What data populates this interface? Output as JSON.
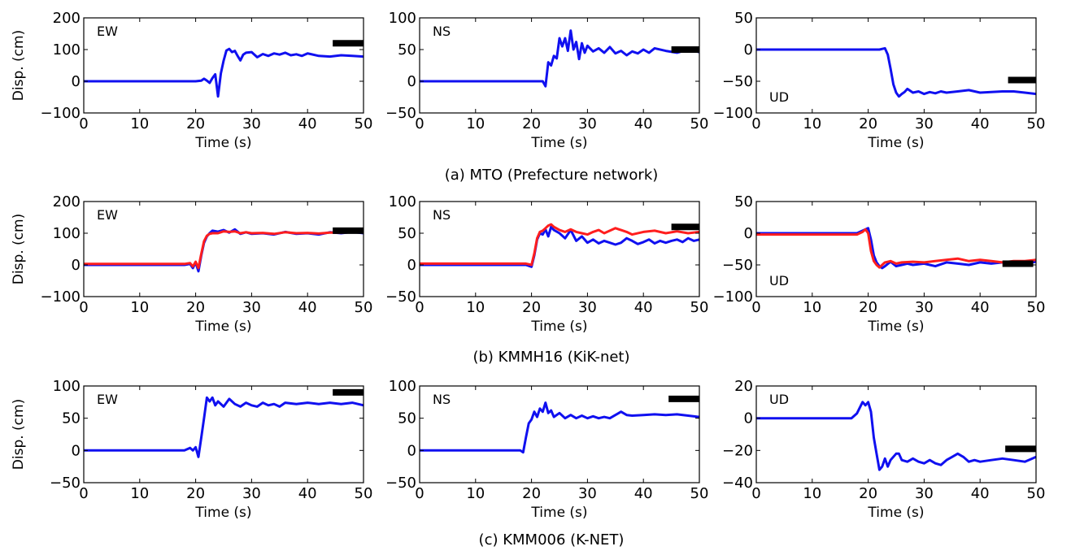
{
  "figure": {
    "captions": [
      "(a) MTO (Prefecture network)",
      "(b) KMMH16 (KiK-net)",
      "(c) KMM006 (K-NET)"
    ]
  },
  "colors": {
    "blue": "#1010f0",
    "red": "#ff1e1e",
    "bar": "#000000"
  },
  "chart_data": [
    {
      "id": "a-ew",
      "type": "line",
      "label": "EW",
      "xlabel": "Time (s)",
      "ylabel": "Disp. (cm)",
      "xlim": [
        0,
        50
      ],
      "ylim": [
        -100,
        200
      ],
      "xticks": [
        "0",
        "10",
        "20",
        "30",
        "40",
        "50"
      ],
      "yticks": [
        "−100",
        "0",
        "100",
        "200"
      ],
      "bar": {
        "x": [
          44.5,
          50
        ],
        "y": 120
      },
      "series": [
        {
          "color": "blue",
          "x": [
            0,
            19,
            20,
            21,
            21.5,
            22,
            22.5,
            23,
            23.5,
            24,
            24.5,
            25,
            25.5,
            26,
            26.5,
            27,
            27.5,
            28,
            28.5,
            29,
            30,
            31,
            32,
            33,
            34,
            35,
            36,
            37,
            38,
            39,
            40,
            42,
            44,
            46,
            48,
            50
          ],
          "y": [
            0,
            0,
            0,
            2,
            8,
            2,
            -5,
            10,
            22,
            -48,
            25,
            65,
            97,
            102,
            92,
            96,
            80,
            66,
            84,
            90,
            92,
            76,
            86,
            80,
            88,
            84,
            90,
            82,
            85,
            80,
            88,
            80,
            78,
            82,
            80,
            78
          ]
        }
      ]
    },
    {
      "id": "a-ns",
      "type": "line",
      "label": "NS",
      "xlabel": "Time (s)",
      "ylabel": "",
      "xlim": [
        0,
        50
      ],
      "ylim": [
        -50,
        100
      ],
      "xticks": [
        "0",
        "10",
        "20",
        "30",
        "40",
        "50"
      ],
      "yticks": [
        "−50",
        "0",
        "50",
        "100"
      ],
      "bar": {
        "x": [
          45,
          50
        ],
        "y": 50
      },
      "series": [
        {
          "color": "blue",
          "x": [
            0,
            21,
            22,
            22.5,
            23,
            23.5,
            24,
            24.5,
            25,
            25.5,
            26,
            26.5,
            27,
            27.5,
            28,
            28.5,
            29,
            29.5,
            30,
            31,
            32,
            33,
            34,
            35,
            36,
            37,
            38,
            39,
            40,
            41,
            42,
            44,
            46,
            48,
            50
          ],
          "y": [
            0,
            0,
            0,
            -8,
            30,
            25,
            40,
            36,
            68,
            55,
            68,
            48,
            80,
            50,
            62,
            35,
            60,
            45,
            56,
            47,
            52,
            45,
            54,
            44,
            48,
            41,
            47,
            44,
            50,
            45,
            52,
            48,
            45,
            50,
            46
          ]
        }
      ]
    },
    {
      "id": "a-ud",
      "type": "line",
      "label": "UD",
      "xlabel": "Time (s)",
      "ylabel": "",
      "xlim": [
        0,
        50
      ],
      "ylim": [
        -100,
        50
      ],
      "xticks": [
        "0",
        "10",
        "20",
        "30",
        "40",
        "50"
      ],
      "yticks": [
        "−100",
        "−50",
        "0",
        "50"
      ],
      "bar": {
        "x": [
          45,
          50
        ],
        "y": -48
      },
      "series": [
        {
          "color": "blue",
          "x": [
            0,
            20,
            21,
            22,
            23,
            23.5,
            24,
            24.5,
            25,
            25.5,
            26,
            26.5,
            27,
            28,
            29,
            30,
            31,
            32,
            33,
            34,
            36,
            38,
            40,
            42,
            44,
            46,
            48,
            50
          ],
          "y": [
            0,
            0,
            0,
            0,
            2,
            -8,
            -30,
            -55,
            -68,
            -74,
            -70,
            -67,
            -62,
            -68,
            -66,
            -70,
            -67,
            -69,
            -66,
            -68,
            -66,
            -64,
            -68,
            -67,
            -66,
            -66,
            -68,
            -70
          ]
        }
      ]
    },
    {
      "id": "b-ew",
      "type": "line",
      "label": "EW",
      "xlabel": "Time (s)",
      "ylabel": "Disp. (cm)",
      "xlim": [
        0,
        50
      ],
      "ylim": [
        -100,
        200
      ],
      "xticks": [
        "0",
        "10",
        "20",
        "30",
        "40",
        "50"
      ],
      "yticks": [
        "−100",
        "0",
        "100",
        "200"
      ],
      "bar": {
        "x": [
          44.5,
          50
        ],
        "y": 108
      },
      "series": [
        {
          "color": "blue",
          "x": [
            0,
            18,
            19,
            19.5,
            20,
            20.5,
            21,
            21.5,
            22,
            22.5,
            23,
            24,
            25,
            26,
            27,
            28,
            29,
            30,
            32,
            34,
            36,
            38,
            40,
            42,
            44,
            46,
            48,
            50
          ],
          "y": [
            0,
            0,
            3,
            -10,
            8,
            -20,
            30,
            70,
            90,
            100,
            108,
            105,
            110,
            102,
            112,
            98,
            103,
            98,
            100,
            96,
            104,
            98,
            100,
            96,
            103,
            100,
            104,
            100
          ]
        },
        {
          "color": "red",
          "x": [
            0,
            18,
            19,
            19.5,
            20,
            20.5,
            21,
            21.5,
            22,
            22.5,
            23,
            24,
            25,
            26,
            27,
            28,
            29,
            30,
            32,
            34,
            36,
            38,
            40,
            42,
            44,
            46,
            48,
            50
          ],
          "y": [
            3,
            3,
            6,
            -5,
            10,
            -10,
            35,
            75,
            92,
            98,
            100,
            100,
            106,
            104,
            106,
            100,
            103,
            100,
            101,
            98,
            103,
            100,
            101,
            99,
            102,
            102,
            103,
            103
          ]
        }
      ]
    },
    {
      "id": "b-ns",
      "type": "line",
      "label": "NS",
      "xlabel": "Time (s)",
      "ylabel": "",
      "xlim": [
        0,
        50
      ],
      "ylim": [
        -50,
        100
      ],
      "xticks": [
        "0",
        "10",
        "20",
        "30",
        "40",
        "50"
      ],
      "yticks": [
        "−50",
        "0",
        "50",
        "100"
      ],
      "bar": {
        "x": [
          45,
          50
        ],
        "y": 60
      },
      "series": [
        {
          "color": "blue",
          "x": [
            0,
            19,
            20,
            20.5,
            21,
            21.5,
            22,
            22.5,
            23,
            23.5,
            24,
            25,
            26,
            27,
            28,
            29,
            30,
            31,
            32,
            33,
            34,
            35,
            36,
            37,
            38,
            39,
            40,
            41,
            42,
            43,
            44,
            45,
            46,
            47,
            48,
            49,
            50
          ],
          "y": [
            0,
            0,
            -3,
            15,
            40,
            50,
            48,
            56,
            45,
            60,
            55,
            50,
            42,
            55,
            38,
            45,
            35,
            40,
            34,
            38,
            35,
            32,
            35,
            42,
            38,
            33,
            36,
            40,
            34,
            38,
            35,
            38,
            40,
            36,
            42,
            38,
            40
          ]
        },
        {
          "color": "red",
          "x": [
            0,
            19,
            20,
            20.5,
            21,
            21.5,
            22,
            22.5,
            23,
            23.5,
            24,
            25,
            26,
            27,
            28,
            29,
            30,
            31,
            32,
            33,
            34,
            35,
            36,
            37,
            38,
            40,
            42,
            44,
            46,
            48,
            50
          ],
          "y": [
            2,
            2,
            0,
            18,
            42,
            52,
            54,
            58,
            62,
            64,
            60,
            55,
            52,
            56,
            52,
            50,
            48,
            52,
            55,
            50,
            54,
            58,
            55,
            52,
            48,
            52,
            54,
            50,
            53,
            50,
            52
          ]
        }
      ]
    },
    {
      "id": "b-ud",
      "type": "line",
      "label": "UD",
      "xlabel": "Time (s)",
      "ylabel": "",
      "xlim": [
        0,
        50
      ],
      "ylim": [
        -100,
        50
      ],
      "xticks": [
        "0",
        "10",
        "20",
        "30",
        "40",
        "50"
      ],
      "yticks": [
        "−100",
        "−50",
        "0",
        "50"
      ],
      "bar": {
        "x": [
          44,
          49.5
        ],
        "y": -48
      },
      "series": [
        {
          "color": "blue",
          "x": [
            0,
            18,
            19,
            20,
            20.5,
            21,
            21.5,
            22,
            22.5,
            23,
            24,
            25,
            26,
            27,
            28,
            30,
            32,
            34,
            36,
            38,
            40,
            42,
            44,
            46,
            48,
            50
          ],
          "y": [
            0,
            0,
            4,
            8,
            -10,
            -35,
            -46,
            -52,
            -55,
            -52,
            -45,
            -52,
            -50,
            -48,
            -50,
            -48,
            -52,
            -46,
            -48,
            -50,
            -46,
            -48,
            -46,
            -48,
            -48,
            -45
          ]
        },
        {
          "color": "red",
          "x": [
            0,
            18,
            19,
            19.5,
            20,
            20.5,
            21,
            21.5,
            22,
            22.5,
            23,
            24,
            25,
            26,
            28,
            30,
            32,
            34,
            36,
            38,
            40,
            42,
            44,
            46,
            48,
            50
          ],
          "y": [
            -2,
            -2,
            2,
            6,
            0,
            -28,
            -44,
            -50,
            -54,
            -50,
            -46,
            -44,
            -48,
            -46,
            -45,
            -46,
            -44,
            -42,
            -40,
            -44,
            -42,
            -44,
            -46,
            -44,
            -44,
            -42
          ]
        }
      ]
    },
    {
      "id": "c-ew",
      "type": "line",
      "label": "EW",
      "xlabel": "Time (s)",
      "ylabel": "Disp. (cm)",
      "xlim": [
        0,
        50
      ],
      "ylim": [
        -50,
        100
      ],
      "xticks": [
        "0",
        "10",
        "20",
        "30",
        "40",
        "50"
      ],
      "yticks": [
        "−50",
        "0",
        "50",
        "100"
      ],
      "bar": {
        "x": [
          44.5,
          50
        ],
        "y": 90
      },
      "series": [
        {
          "color": "blue",
          "x": [
            0,
            18,
            19,
            19.5,
            20,
            20.5,
            21,
            21.5,
            22,
            22.5,
            23,
            23.5,
            24,
            25,
            26,
            27,
            28,
            29,
            30,
            31,
            32,
            33,
            34,
            35,
            36,
            38,
            40,
            42,
            44,
            46,
            48,
            50
          ],
          "y": [
            0,
            0,
            4,
            0,
            5,
            -10,
            20,
            50,
            82,
            76,
            82,
            70,
            76,
            68,
            80,
            72,
            68,
            74,
            70,
            68,
            74,
            70,
            72,
            68,
            74,
            72,
            74,
            72,
            74,
            72,
            74,
            70
          ]
        }
      ]
    },
    {
      "id": "c-ns",
      "type": "line",
      "label": "NS",
      "xlabel": "Time (s)",
      "ylabel": "",
      "xlim": [
        0,
        50
      ],
      "ylim": [
        -50,
        100
      ],
      "xticks": [
        "0",
        "10",
        "20",
        "30",
        "40",
        "50"
      ],
      "yticks": [
        "−50",
        "0",
        "50",
        "100"
      ],
      "bar": {
        "x": [
          44.5,
          50
        ],
        "y": 80
      },
      "series": [
        {
          "color": "blue",
          "x": [
            0,
            18,
            18.5,
            19,
            19.5,
            20,
            20.5,
            21,
            21.5,
            22,
            22.5,
            23,
            23.5,
            24,
            25,
            26,
            27,
            28,
            29,
            30,
            31,
            32,
            33,
            34,
            35,
            36,
            37,
            38,
            40,
            42,
            44,
            46,
            48,
            50
          ],
          "y": [
            0,
            0,
            -3,
            20,
            42,
            48,
            60,
            52,
            65,
            60,
            74,
            58,
            62,
            52,
            58,
            50,
            55,
            50,
            54,
            50,
            53,
            50,
            52,
            50,
            55,
            60,
            55,
            54,
            55,
            56,
            55,
            56,
            54,
            52
          ]
        }
      ]
    },
    {
      "id": "c-ud",
      "type": "line",
      "label": "UD",
      "xlabel": "Time (s)",
      "ylabel": "",
      "xlim": [
        0,
        50
      ],
      "ylim": [
        -40,
        20
      ],
      "xticks": [
        "0",
        "10",
        "20",
        "30",
        "40",
        "50"
      ],
      "yticks": [
        "−40",
        "−20",
        "0",
        "20"
      ],
      "bar": {
        "x": [
          44.5,
          50
        ],
        "y": -19
      },
      "series": [
        {
          "color": "blue",
          "x": [
            0,
            17,
            18,
            19,
            19.5,
            20,
            20.5,
            21,
            21.5,
            22,
            22.5,
            23,
            23.5,
            24,
            25,
            25.5,
            26,
            27,
            28,
            29,
            30,
            31,
            32,
            33,
            34,
            35,
            36,
            37,
            38,
            39,
            40,
            42,
            44,
            46,
            48,
            50
          ],
          "y": [
            0,
            0,
            3,
            10,
            8,
            10,
            4,
            -12,
            -22,
            -32,
            -30,
            -25,
            -30,
            -26,
            -22,
            -22,
            -26,
            -27,
            -25,
            -27,
            -28,
            -26,
            -28,
            -29,
            -26,
            -24,
            -22,
            -24,
            -27,
            -26,
            -27,
            -26,
            -25,
            -26,
            -27,
            -24
          ]
        }
      ]
    }
  ]
}
